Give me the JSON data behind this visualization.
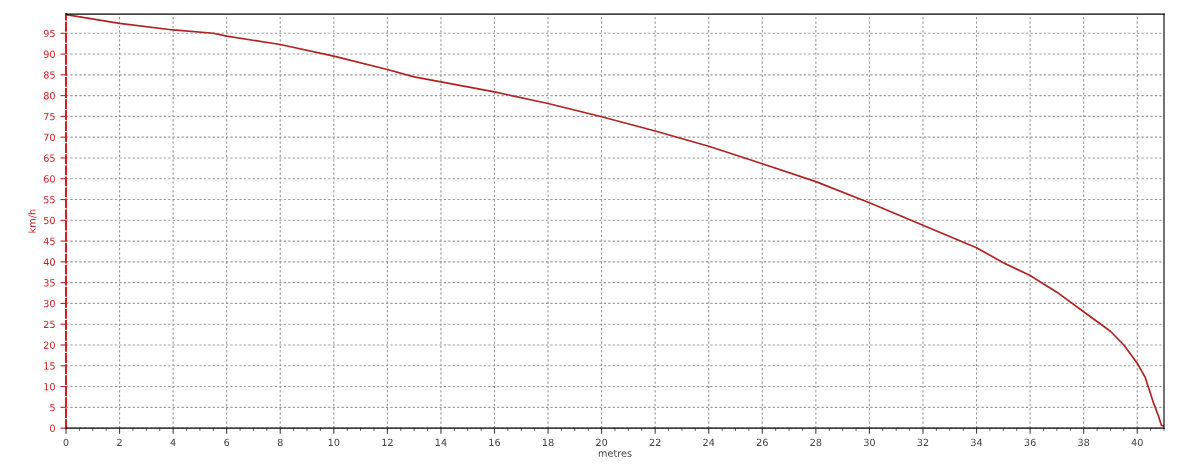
{
  "chart_data": {
    "type": "line",
    "xlabel": "metres",
    "ylabel": "km/h",
    "x": [
      0,
      2,
      4,
      5.5,
      6,
      8,
      10,
      12,
      13,
      14,
      16,
      18,
      20,
      22,
      24,
      26,
      28,
      30,
      32,
      34,
      35,
      36,
      37,
      38,
      39,
      39.5,
      40,
      40.3,
      40.6,
      40.8,
      40.9,
      41
    ],
    "series": [
      {
        "color": "#b22222",
        "values": [
          99.5,
          97.4,
          95.8,
          95,
          94.3,
          92.3,
          89.5,
          86.3,
          84.5,
          83.3,
          80.9,
          78.1,
          74.9,
          71.5,
          67.8,
          63.6,
          59.3,
          54.2,
          48.8,
          43.4,
          39.8,
          36.7,
          32.7,
          28,
          23.3,
          20,
          15.6,
          12.2,
          6.2,
          2.8,
          0.7,
          0.5
        ]
      }
    ],
    "xlim": [
      0,
      41
    ],
    "ylim": [
      0,
      99.6
    ],
    "xticks": [
      0,
      2,
      4,
      6,
      8,
      10,
      12,
      14,
      16,
      18,
      20,
      22,
      24,
      26,
      28,
      30,
      32,
      34,
      36,
      38,
      40
    ],
    "yticks": [
      0,
      5,
      10,
      15,
      20,
      25,
      30,
      35,
      40,
      45,
      50,
      55,
      60,
      65,
      70,
      75,
      80,
      85,
      90,
      95
    ],
    "grid": true,
    "legend": false,
    "marker": "none",
    "line_style": "solid"
  }
}
